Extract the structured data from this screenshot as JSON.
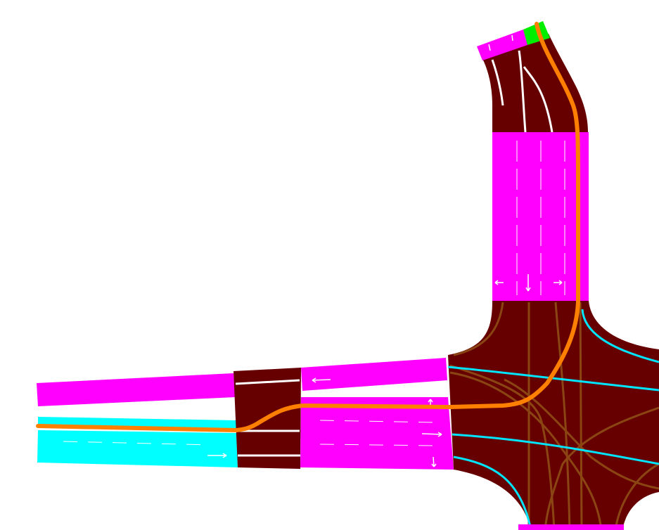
{
  "colors": {
    "background": "#ffffff",
    "road_surface": "#660000",
    "lane_highlight_magenta": "#ff00ff",
    "lane_highlight_cyan": "#00ffff",
    "start_marker_green": "#00ee00",
    "route_orange": "#ff8000",
    "lane_marking_white": "#ffffff",
    "connector_brown": "#8b4513",
    "connector_cyan": "#00e5ff"
  },
  "map": {
    "type": "road-network-lane-view",
    "elements": [
      "north-approach-road",
      "west-approach-road",
      "intersection",
      "planned-route"
    ]
  }
}
